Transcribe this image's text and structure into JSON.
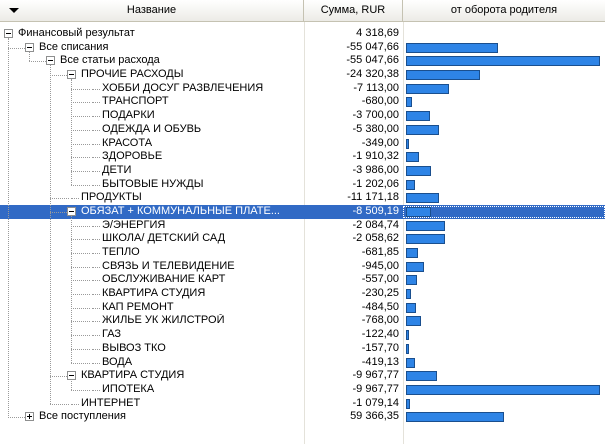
{
  "header": {
    "name_label": "Название",
    "amount_label": "Сумма, RUR",
    "share_label": "от оборота родителя"
  },
  "colors": {
    "bar": "#2e84e6",
    "selection": "#316ac5"
  },
  "rows": [
    {
      "label": "Финансовый результат",
      "amount": "4 318,69",
      "level": 0,
      "expander": "minus",
      "share": 0
    },
    {
      "label": "Все списания",
      "amount": "-55 047,66",
      "level": 1,
      "expander": "minus",
      "share": 0.47
    },
    {
      "label": "Все статьи расхода",
      "amount": "-55 047,66",
      "level": 2,
      "expander": "minus",
      "share": 0.99
    },
    {
      "label": "ПРОЧИЕ РАСХОДЫ",
      "amount": "-24 320,38",
      "level": 3,
      "expander": "minus",
      "share": 0.38
    },
    {
      "label": "ХОББИ ДОСУГ РАЗВЛЕЧЕНИЯ",
      "amount": "-7 113,00",
      "level": 4,
      "expander": "none",
      "share": 0.22
    },
    {
      "label": "ТРАНСПОРТ",
      "amount": "-680,00",
      "level": 4,
      "expander": "none",
      "share": 0.03
    },
    {
      "label": "ПОДАРКИ",
      "amount": "-3 700,00",
      "level": 4,
      "expander": "none",
      "share": 0.12
    },
    {
      "label": "ОДЕЖДА И ОБУВЬ",
      "amount": "-5 380,00",
      "level": 4,
      "expander": "none",
      "share": 0.17
    },
    {
      "label": "КРАСОТА",
      "amount": "-349,00",
      "level": 4,
      "expander": "none",
      "share": 0.015
    },
    {
      "label": "ЗДОРОВЬЕ",
      "amount": "-1 910,32",
      "level": 4,
      "expander": "none",
      "share": 0.065
    },
    {
      "label": "ДЕТИ",
      "amount": "-3 986,00",
      "level": 4,
      "expander": "none",
      "share": 0.13
    },
    {
      "label": "БЫТОВЫЕ НУЖДЫ",
      "amount": "-1 202,06",
      "level": 4,
      "expander": "none",
      "share": 0.045
    },
    {
      "label": "ПРОДУКТЫ",
      "amount": "-11 171,18",
      "level": 3,
      "expander": "none",
      "share": 0.17
    },
    {
      "label": "ОБЯЗАТ + КОММУНАЛЬНЫЕ ПЛАТЕ...",
      "amount": "-8 509,19",
      "level": 3,
      "expander": "minus",
      "share": 0.13,
      "selected": true
    },
    {
      "label": "Э/ЭНЕРГИЯ",
      "amount": "-2 084,74",
      "level": 4,
      "expander": "none",
      "share": 0.2
    },
    {
      "label": "ШКОЛА/ ДЕТСКИЙ САД",
      "amount": "-2 058,62",
      "level": 4,
      "expander": "none",
      "share": 0.2
    },
    {
      "label": "ТЕПЛО",
      "amount": "-681,85",
      "level": 4,
      "expander": "none",
      "share": 0.06
    },
    {
      "label": "СВЯЗЬ И ТЕЛЕВИДЕНИЕ",
      "amount": "-945,00",
      "level": 4,
      "expander": "none",
      "share": 0.09
    },
    {
      "label": "ОБСЛУЖИВАНИЕ КАРТ",
      "amount": "-557,00",
      "level": 4,
      "expander": "none",
      "share": 0.055
    },
    {
      "label": "КВАРТИРА СТУДИЯ",
      "amount": "-230,25",
      "level": 4,
      "expander": "none",
      "share": 0.025
    },
    {
      "label": "КАП РЕМОНТ",
      "amount": "-484,50",
      "level": 4,
      "expander": "none",
      "share": 0.05
    },
    {
      "label": "ЖИЛЬЕ УК ЖИЛСТРОЙ",
      "amount": "-768,00",
      "level": 4,
      "expander": "none",
      "share": 0.075
    },
    {
      "label": "ГАЗ",
      "amount": "-122,40",
      "level": 4,
      "expander": "none",
      "share": 0.013
    },
    {
      "label": "ВЫВОЗ ТКО",
      "amount": "-157,70",
      "level": 4,
      "expander": "none",
      "share": 0.016
    },
    {
      "label": "ВОДА",
      "amount": "-419,13",
      "level": 4,
      "expander": "none",
      "share": 0.045
    },
    {
      "label": "КВАРТИРА СТУДИЯ",
      "amount": "-9 967,77",
      "level": 3,
      "expander": "minus",
      "share": 0.16
    },
    {
      "label": "ИПОТЕКА",
      "amount": "-9 967,77",
      "level": 4,
      "expander": "none",
      "share": 0.99
    },
    {
      "label": "ИНТЕРНЕТ",
      "amount": "-1 079,14",
      "level": 3,
      "expander": "none",
      "share": 0.02
    },
    {
      "label": "Все поступления",
      "amount": "59 366,35",
      "level": 1,
      "expander": "plus",
      "share": 0.5
    }
  ]
}
